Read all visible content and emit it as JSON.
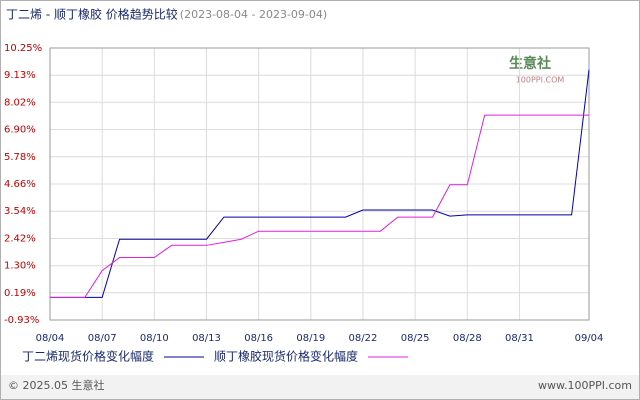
{
  "chart_data": {
    "type": "line",
    "title": "丁二烯 - 顺丁橡胶 价格趋势比较",
    "subtitle": "(2023-08-04 - 2023-09-04)",
    "categories": [
      "08/04",
      null,
      null,
      "08/07",
      null,
      null,
      "08/10",
      null,
      null,
      "08/13",
      null,
      null,
      "08/16",
      null,
      null,
      "08/19",
      null,
      null,
      "08/22",
      null,
      null,
      "08/25",
      null,
      null,
      "08/28",
      null,
      null,
      "08/31",
      null,
      null,
      null,
      "09/04"
    ],
    "series": [
      {
        "name": "丁二烯现货价格变化幅度",
        "color": "#0000aa",
        "values": [
          0,
          0,
          0,
          0,
          2.39,
          2.39,
          2.39,
          2.39,
          2.39,
          2.39,
          3.3,
          3.3,
          3.3,
          3.3,
          3.3,
          3.3,
          3.3,
          3.3,
          3.59,
          3.59,
          3.59,
          3.59,
          3.59,
          3.34,
          3.39,
          3.39,
          3.39,
          3.39,
          3.39,
          3.39,
          3.39,
          9.36
        ]
      },
      {
        "name": "顺丁橡胶现货价格变化幅度",
        "color": "#e020e0",
        "values": [
          0,
          0,
          0,
          1.1,
          1.64,
          1.64,
          1.64,
          2.14,
          2.14,
          2.14,
          2.26,
          2.39,
          2.72,
          2.72,
          2.72,
          2.72,
          2.72,
          2.72,
          2.72,
          2.72,
          3.3,
          3.3,
          3.3,
          4.63,
          4.63,
          7.49,
          7.49,
          7.49,
          7.49,
          7.49,
          7.49,
          7.49
        ]
      }
    ],
    "ylim": [
      -0.93,
      10.25
    ],
    "yticks": [
      {
        "value": 10.25,
        "label": "10.25%"
      },
      {
        "value": 9.13,
        "label": "9.13%"
      },
      {
        "value": 8.02,
        "label": "8.02%"
      },
      {
        "value": 6.9,
        "label": "6.90%"
      },
      {
        "value": 5.78,
        "label": "5.78%"
      },
      {
        "value": 4.66,
        "label": "4.66%"
      },
      {
        "value": 3.54,
        "label": "3.54%"
      },
      {
        "value": 2.42,
        "label": "2.42%"
      },
      {
        "value": 1.3,
        "label": "1.30%"
      },
      {
        "value": 0.19,
        "label": "0.19%"
      },
      {
        "value": -0.93,
        "label": "-0.93%"
      }
    ],
    "grid": true
  },
  "watermark": {
    "name": "生意社",
    "site": "100PPI.COM"
  },
  "footer": {
    "copyright": "© 2025.05 生意社",
    "url": "www.100PPI.com"
  }
}
